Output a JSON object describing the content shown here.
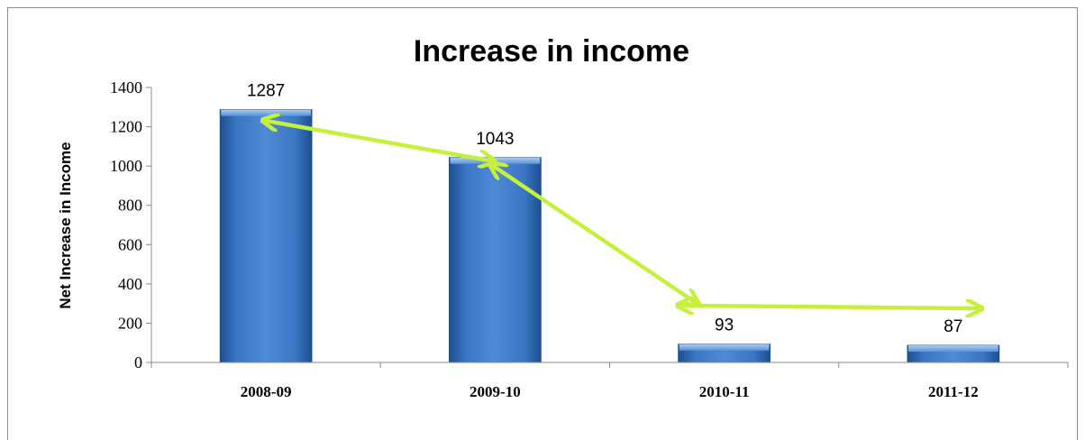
{
  "chart_data": {
    "type": "bar",
    "title": "Increase in income",
    "xlabel": "",
    "ylabel": "Net Increase in Income",
    "categories": [
      "2008-09",
      "2009-10",
      "2010-11",
      "2011-12"
    ],
    "values": [
      1287,
      1043,
      93,
      87
    ],
    "data_labels": [
      "1287",
      "1043",
      "93",
      "87"
    ],
    "ylim": [
      0,
      1400
    ],
    "yticks": [
      "0",
      "200",
      "400",
      "600",
      "800",
      "1000",
      "1200",
      "1400"
    ],
    "grid": false,
    "legend": "none",
    "annotations": "double-headed trend arrows connecting successive bars",
    "colors": {
      "bar_fill": "#3a76c3",
      "bar_highlight": "#8fbdf0",
      "bar_edge": "#1d4e8c",
      "arrow": "#c6f03c",
      "axis": "#8c8c8c"
    }
  }
}
